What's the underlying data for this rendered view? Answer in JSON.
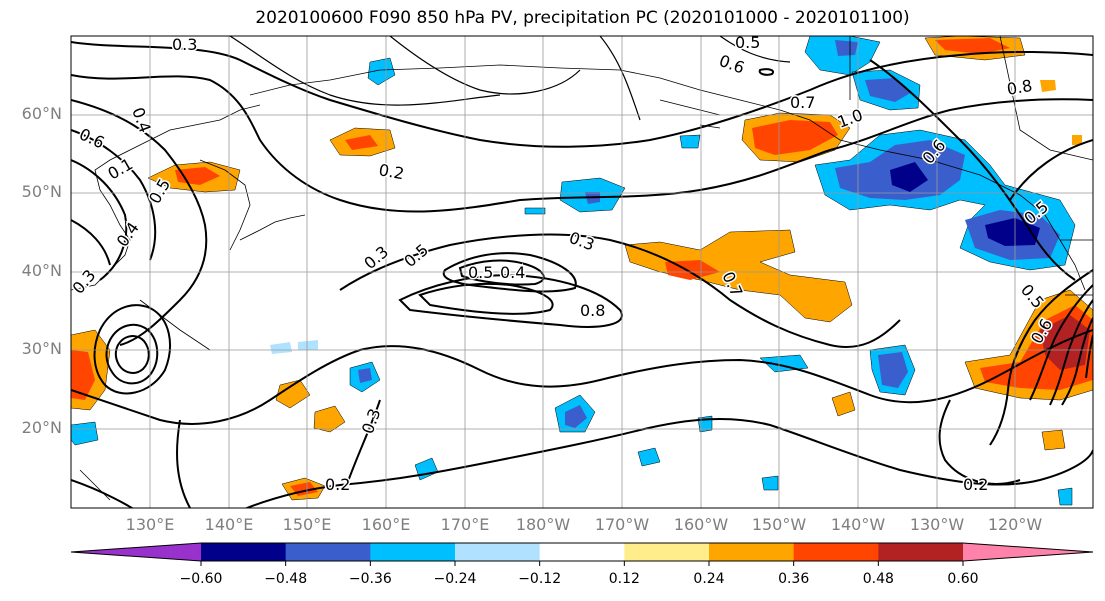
{
  "title": "2020100600 F090 850 hPa PV, precipitation PC (2020101000 - 2020101100)",
  "map": {
    "lat_labels": [
      "60°N",
      "50°N",
      "40°N",
      "30°N",
      "20°N"
    ],
    "lon_labels": [
      "130°E",
      "140°E",
      "150°E",
      "160°E",
      "170°E",
      "180°W",
      "170°W",
      "160°W",
      "150°W",
      "140°W",
      "130°W",
      "120°W"
    ],
    "contour_labels": [
      "0.3",
      "0.4",
      "0.6",
      "0.1",
      "0.5",
      "0.4",
      "0.3",
      "0.3",
      "0.5",
      "0.2",
      "0.5",
      "0.4",
      "0.3",
      "0.8",
      "0.7",
      "0.5",
      "0.6",
      "0.7",
      "1.0",
      "0.8",
      "0.5",
      "0.6",
      "0.6",
      "0.5",
      "0.3",
      "0.2",
      "0.2"
    ]
  },
  "colorbar": {
    "ticks": [
      "−0.60",
      "−0.48",
      "−0.36",
      "−0.24",
      "−0.12",
      "0.12",
      "0.24",
      "0.36",
      "0.48",
      "0.60"
    ],
    "colors": [
      "#9932cc",
      "#00008b",
      "#3a5fcd",
      "#00bfff",
      "#b0e2ff",
      "#ffffff",
      "#ffec8b",
      "#ffa500",
      "#ff4500",
      "#b22222",
      "#ff82ab"
    ]
  }
}
